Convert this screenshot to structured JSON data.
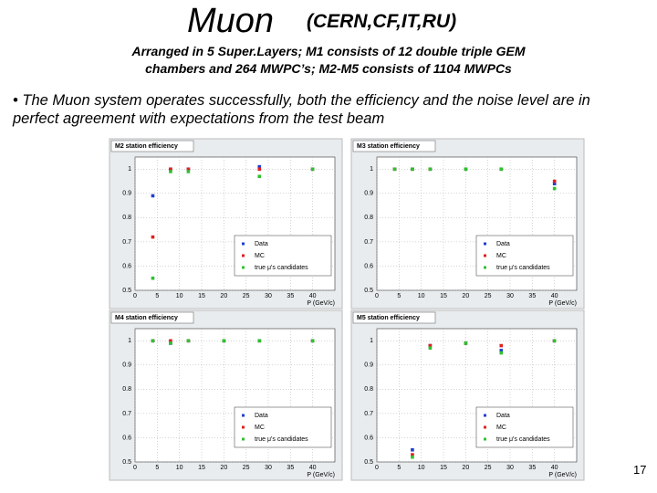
{
  "slide": {
    "title": "Muon",
    "title_note": "(CERN,CF,IT,RU)",
    "subtitle": [
      "Arranged in 5 Super.Layers; M1 consists of 12 double triple GEM",
      "chambers and 264 MWPC’s; M2-M5 consists of 1104 MWPCs"
    ],
    "bullet": "The Muon system operates successfully, both the efficiency and the noise level are in perfect agreement with expectations from the test beam",
    "page_number": "17"
  },
  "chart_data": [
    {
      "type": "scatter",
      "title": "M2 station efficiency",
      "xlabel": "P (GeV/c)",
      "x": [
        4,
        8,
        12,
        28,
        40
      ],
      "xlim": [
        0,
        45
      ],
      "xticks": [
        0,
        5,
        10,
        15,
        20,
        25,
        30,
        35,
        40
      ],
      "ylim": [
        0.5,
        1.05
      ],
      "yticks": [
        0.5,
        0.6,
        0.7,
        0.8,
        0.9,
        1
      ],
      "series": [
        {
          "name": "Data",
          "color": "#1f3fcf",
          "values": [
            0.89,
            1.0,
            1.0,
            1.01,
            1.0
          ]
        },
        {
          "name": "MC",
          "color": "#e02020",
          "values": [
            0.72,
            1.0,
            1.0,
            1.0,
            1.0
          ]
        },
        {
          "name": "true μ's candidates",
          "color": "#30c030",
          "values": [
            0.55,
            0.99,
            0.99,
            0.97,
            1.0
          ]
        }
      ]
    },
    {
      "type": "scatter",
      "title": "M3 station efficiency",
      "xlabel": "P (GeV/c)",
      "x": [
        4,
        8,
        12,
        20,
        28,
        40
      ],
      "xlim": [
        0,
        45
      ],
      "xticks": [
        0,
        5,
        10,
        15,
        20,
        25,
        30,
        35,
        40
      ],
      "ylim": [
        0.5,
        1.05
      ],
      "yticks": [
        0.5,
        0.6,
        0.7,
        0.8,
        0.9,
        1
      ],
      "series": [
        {
          "name": "Data",
          "color": "#1f3fcf",
          "values": [
            1.0,
            1.0,
            1.0,
            1.0,
            1.0,
            0.94
          ]
        },
        {
          "name": "MC",
          "color": "#e02020",
          "values": [
            1.0,
            1.0,
            1.0,
            1.0,
            1.0,
            0.95
          ]
        },
        {
          "name": "true μ's candidates",
          "color": "#30c030",
          "values": [
            1.0,
            1.0,
            1.0,
            1.0,
            1.0,
            0.92
          ]
        }
      ]
    },
    {
      "type": "scatter",
      "title": "M4 station efficiency",
      "xlabel": "P (GeV/c)",
      "x": [
        4,
        8,
        12,
        20,
        28,
        40
      ],
      "xlim": [
        0,
        45
      ],
      "xticks": [
        0,
        5,
        10,
        15,
        20,
        25,
        30,
        35,
        40
      ],
      "ylim": [
        0.5,
        1.05
      ],
      "yticks": [
        0.5,
        0.6,
        0.7,
        0.8,
        0.9,
        1
      ],
      "series": [
        {
          "name": "Data",
          "color": "#1f3fcf",
          "values": [
            1.0,
            0.99,
            1.0,
            1.0,
            1.0,
            1.0
          ]
        },
        {
          "name": "MC",
          "color": "#e02020",
          "values": [
            1.0,
            1.0,
            1.0,
            1.0,
            1.0,
            1.0
          ]
        },
        {
          "name": "true μ's candidates",
          "color": "#30c030",
          "values": [
            1.0,
            0.99,
            1.0,
            1.0,
            1.0,
            1.0
          ]
        }
      ]
    },
    {
      "type": "scatter",
      "title": "M5 station efficiency",
      "xlabel": "P (GeV/c)",
      "x": [
        8,
        12,
        20,
        28,
        40
      ],
      "xlim": [
        0,
        45
      ],
      "xticks": [
        0,
        5,
        10,
        15,
        20,
        25,
        30,
        35,
        40
      ],
      "ylim": [
        0.5,
        1.05
      ],
      "yticks": [
        0.5,
        0.6,
        0.7,
        0.8,
        0.9,
        1
      ],
      "series": [
        {
          "name": "Data",
          "color": "#1f3fcf",
          "values": [
            0.55,
            0.98,
            0.99,
            0.96,
            1.0
          ]
        },
        {
          "name": "MC",
          "color": "#e02020",
          "values": [
            0.53,
            0.98,
            0.99,
            0.98,
            1.0
          ]
        },
        {
          "name": "true μ's candidates",
          "color": "#30c030",
          "values": [
            0.52,
            0.97,
            0.99,
            0.95,
            1.0
          ]
        }
      ]
    }
  ]
}
